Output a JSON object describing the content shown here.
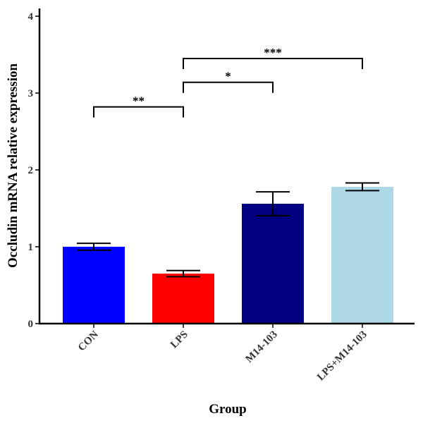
{
  "chart_data": {
    "type": "bar",
    "title": "",
    "xlabel": "Group",
    "ylabel": "Occludin mRNA relative expression",
    "ylim": [
      0,
      4.1
    ],
    "yticks": [
      "0",
      "1",
      "2",
      "3",
      "4"
    ],
    "categories": [
      "CON",
      "LPS",
      "M14-103",
      "LPS+M14-103"
    ],
    "values": [
      1.0,
      0.65,
      1.56,
      1.78
    ],
    "error": [
      0.045,
      0.04,
      0.155,
      0.05
    ],
    "colors": [
      "#0000ff",
      "#ff0000",
      "#000080",
      "#add8e6"
    ],
    "significance": [
      {
        "from": 0,
        "to": 1,
        "label": "**",
        "height": 2.82
      },
      {
        "from": 1,
        "to": 2,
        "label": "*",
        "height": 3.14
      },
      {
        "from": 1,
        "to": 3,
        "label": "***",
        "height": 3.45
      }
    ]
  }
}
